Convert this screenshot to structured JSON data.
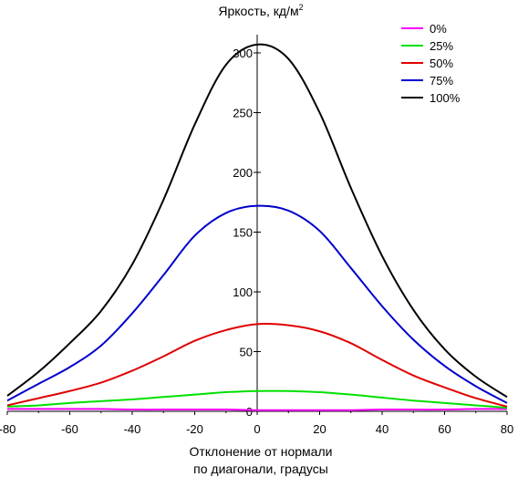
{
  "chart_data": {
    "type": "line",
    "title": "",
    "ylabel": "Яркость, кд/м",
    "ylabel_sup": "2",
    "xlabel_lines": [
      "Отклонение от нормали",
      "по диагонали, градусы"
    ],
    "xlim": [
      -80,
      80
    ],
    "ylim": [
      0,
      310
    ],
    "xticks": [
      -80,
      -60,
      -40,
      -20,
      0,
      20,
      40,
      60,
      80
    ],
    "yticks": [
      0,
      50,
      100,
      150,
      200,
      250,
      300
    ],
    "grid": false,
    "legend_position": "top-right",
    "x": [
      -80,
      -70,
      -60,
      -50,
      -40,
      -30,
      -20,
      -10,
      0,
      10,
      20,
      30,
      40,
      50,
      60,
      70,
      80
    ],
    "series": [
      {
        "name": "0%",
        "color": "#ff00ff",
        "values": [
          2,
          2,
          2,
          2,
          1.5,
          1.5,
          1.5,
          1.5,
          1,
          1,
          1,
          1,
          1.5,
          1.5,
          1.5,
          2,
          2
        ]
      },
      {
        "name": "25%",
        "color": "#00e000",
        "values": [
          4,
          5,
          7,
          8.5,
          10,
          12,
          14,
          16,
          17,
          17,
          16,
          14,
          11.5,
          9,
          7,
          5,
          3
        ]
      },
      {
        "name": "50%",
        "color": "#e00000",
        "values": [
          5,
          11,
          17,
          24,
          34,
          46,
          59,
          68,
          73,
          72,
          67,
          57,
          43,
          30,
          20,
          11,
          4
        ]
      },
      {
        "name": "75%",
        "color": "#0000cc",
        "values": [
          9,
          23,
          37,
          55,
          82,
          114,
          147,
          166,
          172,
          168,
          151,
          120,
          88,
          60,
          38,
          21,
          7
        ]
      },
      {
        "name": "100%",
        "color": "#000000",
        "values": [
          13,
          33,
          57,
          84,
          123,
          177,
          240,
          290,
          307,
          295,
          250,
          187,
          130,
          85,
          52,
          29,
          12
        ]
      }
    ]
  }
}
